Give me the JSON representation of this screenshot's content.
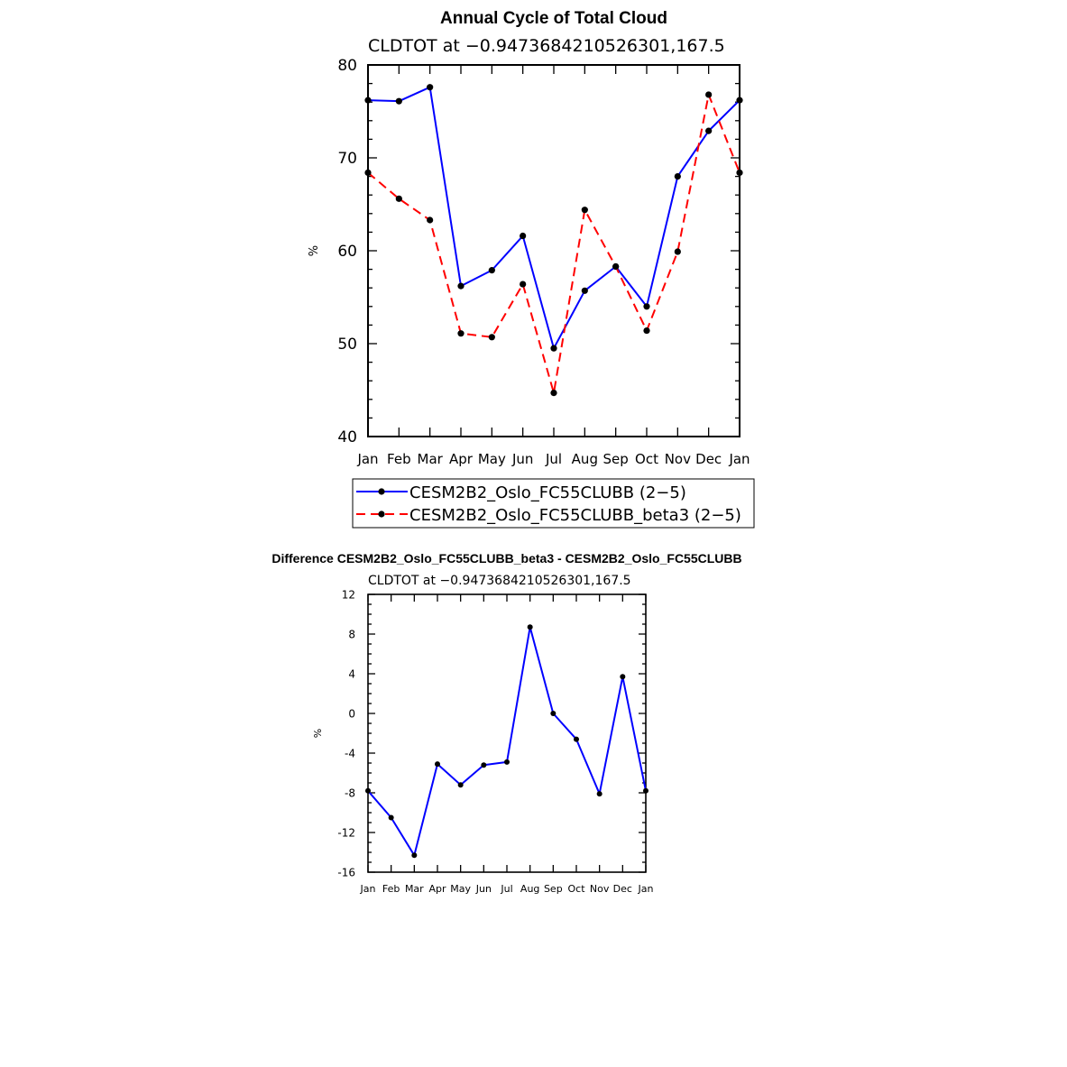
{
  "chart_data": [
    {
      "type": "line",
      "title": "Annual Cycle of Total Cloud",
      "subtitle": "CLDTOT at −0.9473684210526301,167.5",
      "ylabel": "%",
      "xlabel": "",
      "categories": [
        "Jan",
        "Feb",
        "Mar",
        "Apr",
        "May",
        "Jun",
        "Jul",
        "Aug",
        "Sep",
        "Oct",
        "Nov",
        "Dec",
        "Jan"
      ],
      "ylim": [
        40,
        80
      ],
      "yticks": [
        "40",
        "50",
        "60",
        "70",
        "80"
      ],
      "series": [
        {
          "name": "CESM2B2_Oslo_FC55CLUBB (2−5)",
          "color": "#0000ff",
          "dash": "solid",
          "values": [
            76.2,
            76.1,
            77.6,
            56.2,
            57.9,
            61.6,
            49.5,
            55.7,
            58.3,
            54.0,
            68.0,
            72.9,
            76.2
          ]
        },
        {
          "name": "CESM2B2_Oslo_FC55CLUBB_beta3 (2−5)",
          "color": "#ff0000",
          "dash": "dashed",
          "values": [
            68.4,
            65.6,
            63.3,
            51.1,
            50.7,
            56.4,
            44.7,
            64.4,
            58.3,
            51.4,
            59.9,
            76.8,
            68.4
          ]
        }
      ],
      "legend_position": "below"
    },
    {
      "type": "line",
      "title": "Difference CESM2B2_Oslo_FC55CLUBB_beta3 - CESM2B2_Oslo_FC55CLUBB",
      "subtitle": "CLDTOT at −0.9473684210526301,167.5",
      "ylabel": "%",
      "xlabel": "",
      "categories": [
        "Jan",
        "Feb",
        "Mar",
        "Apr",
        "May",
        "Jun",
        "Jul",
        "Aug",
        "Sep",
        "Oct",
        "Nov",
        "Dec",
        "Jan"
      ],
      "ylim": [
        -16,
        12
      ],
      "yticks": [
        "-16",
        "-12",
        "-8",
        "-4",
        "0",
        "4",
        "8",
        "12"
      ],
      "series": [
        {
          "color": "#0000ff",
          "dash": "solid",
          "values": [
            -7.8,
            -10.5,
            -14.3,
            -5.1,
            -7.2,
            -5.2,
            -4.9,
            8.7,
            0.0,
            -2.6,
            -8.1,
            3.7,
            -7.8
          ]
        }
      ]
    }
  ]
}
